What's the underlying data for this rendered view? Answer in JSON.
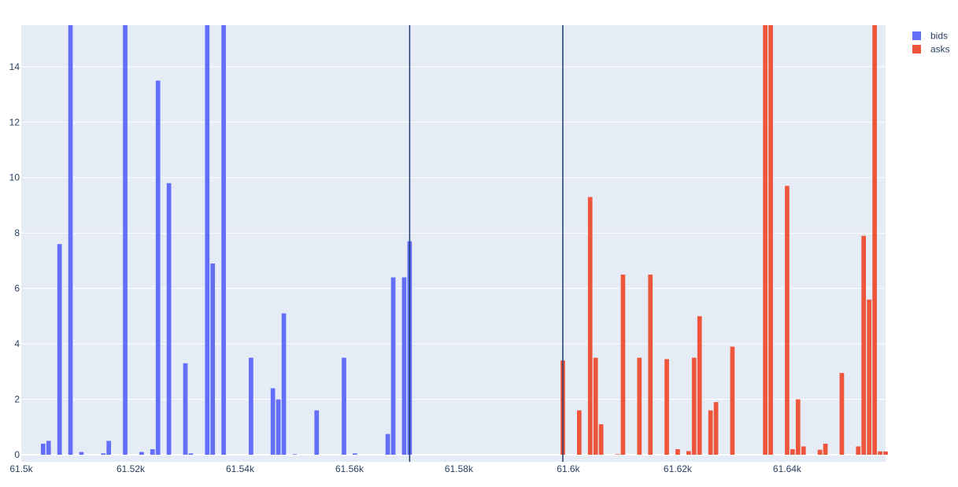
{
  "chart_data": {
    "type": "bar",
    "xlim": [
      61500,
      61658
    ],
    "ylim": [
      0,
      15.5
    ],
    "grid": true,
    "legend_position": "top-right",
    "x_ticks": [
      {
        "value": 61500,
        "label": "61.5k"
      },
      {
        "value": 61520,
        "label": "61.52k"
      },
      {
        "value": 61540,
        "label": "61.54k"
      },
      {
        "value": 61560,
        "label": "61.56k"
      },
      {
        "value": 61580,
        "label": "61.58k"
      },
      {
        "value": 61600,
        "label": "61.6k"
      },
      {
        "value": 61620,
        "label": "61.62k"
      },
      {
        "value": 61640,
        "label": "61.64k"
      }
    ],
    "y_ticks": [
      {
        "value": 0,
        "label": "0"
      },
      {
        "value": 2,
        "label": "2"
      },
      {
        "value": 4,
        "label": "4"
      },
      {
        "value": 6,
        "label": "6"
      },
      {
        "value": 8,
        "label": "8"
      },
      {
        "value": 10,
        "label": "10"
      },
      {
        "value": 12,
        "label": "12"
      },
      {
        "value": 14,
        "label": "14"
      }
    ],
    "reference_lines_x": [
      61571,
      61599
    ],
    "series": [
      {
        "name": "bids",
        "color": "#636efa",
        "x": [
          61504,
          61505,
          61507,
          61509,
          61511,
          61515,
          61516,
          61519,
          61522,
          61524,
          61525,
          61527,
          61530,
          61531,
          61534,
          61535,
          61537,
          61542,
          61546,
          61547,
          61548,
          61550,
          61554,
          61559,
          61561,
          61567,
          61568,
          61570,
          61571
        ],
        "values": [
          0.4,
          0.5,
          7.6,
          16,
          0.1,
          0.05,
          0.5,
          16,
          0.1,
          0.2,
          13.5,
          9.8,
          3.3,
          0.05,
          16,
          6.9,
          16,
          3.5,
          2.4,
          2.0,
          5.1,
          0.02,
          1.6,
          3.5,
          0.05,
          0.75,
          6.4,
          6.4,
          7.7
        ]
      },
      {
        "name": "asks",
        "color": "#ef553b",
        "x": [
          61599,
          61602,
          61604,
          61605,
          61606,
          61609,
          61610,
          61613,
          61615,
          61618,
          61620,
          61622,
          61623,
          61624,
          61626,
          61627,
          61630,
          61636,
          61637,
          61640,
          61641,
          61642,
          61643,
          61646,
          61647,
          61650,
          61653,
          61654,
          61655,
          61656,
          61657,
          61658
        ],
        "values": [
          3.4,
          1.6,
          9.3,
          3.5,
          1.1,
          0.02,
          6.5,
          3.5,
          6.5,
          3.45,
          0.2,
          0.13,
          3.5,
          5.0,
          1.6,
          1.9,
          3.9,
          16,
          16,
          9.7,
          0.2,
          2.0,
          0.3,
          0.18,
          0.4,
          2.95,
          0.3,
          7.9,
          5.6,
          16,
          0.12,
          0.12
        ]
      }
    ]
  }
}
